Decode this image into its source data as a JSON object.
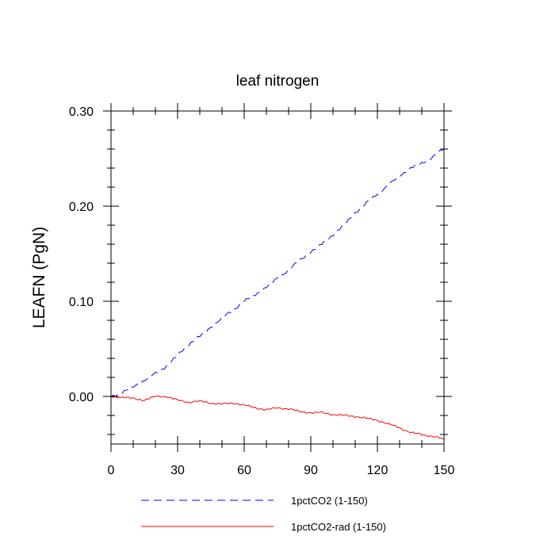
{
  "chart_data": {
    "type": "line",
    "title": "leaf nitrogen",
    "xlabel": "",
    "ylabel": "LEAFN  (PgN)",
    "xlim": [
      0,
      150
    ],
    "ylim": [
      -0.05,
      0.3
    ],
    "x_ticks": [
      0,
      30,
      60,
      90,
      120,
      150
    ],
    "x_tick_labels": [
      "0",
      "30",
      "60",
      "90",
      "120",
      "150"
    ],
    "y_ticks": [
      0.0,
      0.1,
      0.2,
      0.3
    ],
    "y_tick_labels": [
      "0.00",
      "0.10",
      "0.20",
      "0.30"
    ],
    "grid": false,
    "legend_position": "bottom",
    "x": [
      0,
      5,
      10,
      15,
      20,
      25,
      30,
      35,
      40,
      45,
      50,
      55,
      60,
      65,
      70,
      75,
      80,
      85,
      90,
      95,
      100,
      105,
      110,
      115,
      120,
      125,
      130,
      135,
      140,
      145,
      150
    ],
    "series": [
      {
        "name": "1pctCO2 (1-150)",
        "color": "#0000ff",
        "style": "dashed",
        "values": [
          0.0,
          0.004,
          0.01,
          0.017,
          0.024,
          0.032,
          0.043,
          0.055,
          0.063,
          0.073,
          0.082,
          0.091,
          0.1,
          0.107,
          0.115,
          0.124,
          0.133,
          0.143,
          0.152,
          0.16,
          0.17,
          0.18,
          0.193,
          0.203,
          0.213,
          0.222,
          0.232,
          0.24,
          0.245,
          0.252,
          0.26
        ]
      },
      {
        "name": "1pctCO2-rad (1-150)",
        "color": "#ff0000",
        "style": "solid",
        "values": [
          0.0,
          -0.001,
          -0.002,
          -0.004,
          0.0,
          0.0,
          -0.004,
          -0.006,
          -0.005,
          -0.007,
          -0.008,
          -0.007,
          -0.009,
          -0.012,
          -0.014,
          -0.012,
          -0.013,
          -0.016,
          -0.017,
          -0.017,
          -0.019,
          -0.02,
          -0.021,
          -0.023,
          -0.025,
          -0.029,
          -0.033,
          -0.038,
          -0.04,
          -0.042,
          -0.045
        ]
      }
    ]
  }
}
